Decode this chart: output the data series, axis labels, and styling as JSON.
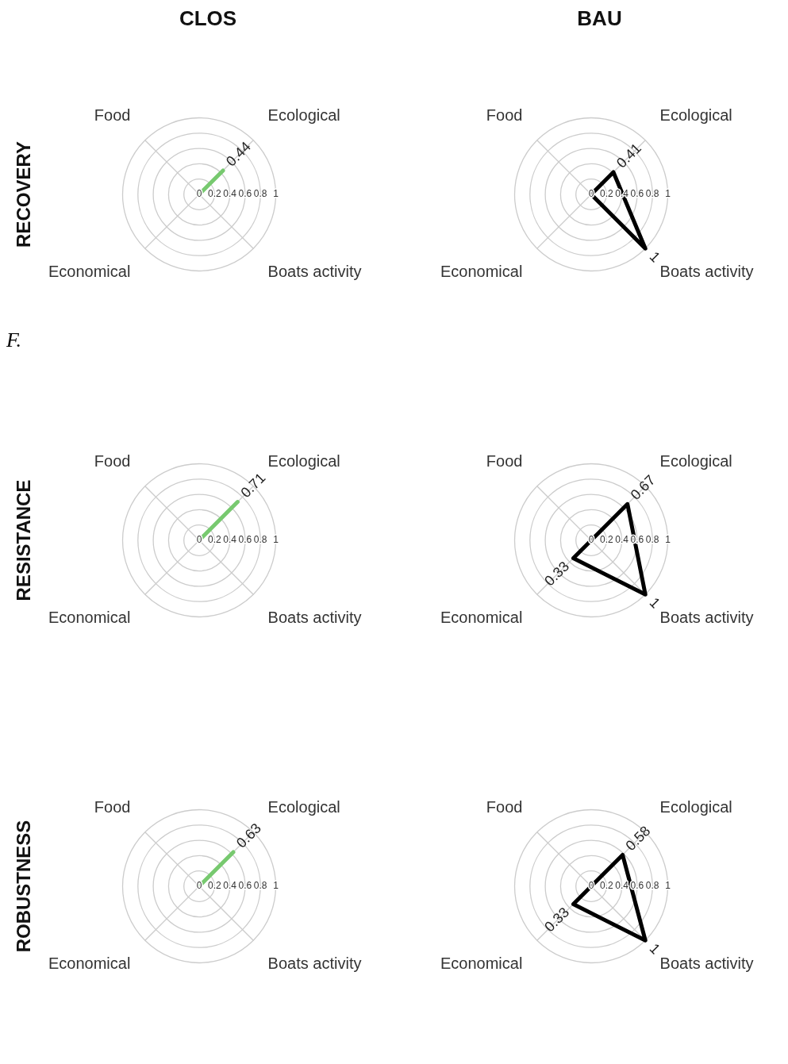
{
  "chart_data": [
    {
      "type": "radar",
      "title": "CLOS",
      "ylabel": "RECOVERY",
      "annotations": [
        "F."
      ],
      "categories": [
        "Ecological",
        "Boats activity",
        "Economical",
        "Food"
      ],
      "series": [
        {
          "color": "#77c96f",
          "values": [
            0.44,
            0,
            0,
            0
          ],
          "value_labels": [
            "0.44",
            null,
            null,
            null
          ]
        }
      ],
      "ylim": [
        0,
        1
      ],
      "yticks": [
        0,
        0.2,
        0.4,
        0.6,
        0.8,
        1
      ],
      "grid": true,
      "marker": "none",
      "line_style": "solid"
    },
    {
      "type": "radar",
      "title": "BAU",
      "categories": [
        "Ecological",
        "Boats activity",
        "Economical",
        "Food"
      ],
      "series": [
        {
          "color": "#000000",
          "values": [
            0.41,
            1,
            0,
            0
          ],
          "value_labels": [
            "0.41",
            "1",
            null,
            null
          ]
        }
      ],
      "ylim": [
        0,
        1
      ],
      "yticks": [
        0,
        0.2,
        0.4,
        0.6,
        0.8,
        1
      ],
      "grid": true,
      "marker": "none",
      "line_style": "solid"
    },
    {
      "type": "radar",
      "ylabel": "RESISTANCE",
      "categories": [
        "Ecological",
        "Boats activity",
        "Economical",
        "Food"
      ],
      "series": [
        {
          "color": "#77c96f",
          "values": [
            0.71,
            0,
            0,
            0
          ],
          "value_labels": [
            "0.71",
            null,
            null,
            null
          ]
        }
      ],
      "ylim": [
        0,
        1
      ],
      "yticks": [
        0,
        0.2,
        0.4,
        0.6,
        0.8,
        1
      ],
      "grid": true,
      "marker": "none",
      "line_style": "solid"
    },
    {
      "type": "radar",
      "categories": [
        "Ecological",
        "Boats activity",
        "Economical",
        "Food"
      ],
      "series": [
        {
          "color": "#000000",
          "values": [
            0.67,
            1,
            0.33,
            0
          ],
          "value_labels": [
            "0.67",
            "1",
            "0.33",
            null
          ]
        }
      ],
      "ylim": [
        0,
        1
      ],
      "yticks": [
        0,
        0.2,
        0.4,
        0.6,
        0.8,
        1
      ],
      "grid": true,
      "marker": "none",
      "line_style": "solid"
    },
    {
      "type": "radar",
      "ylabel": "ROBUSTNESS",
      "categories": [
        "Ecological",
        "Boats activity",
        "Economical",
        "Food"
      ],
      "series": [
        {
          "color": "#77c96f",
          "values": [
            0.63,
            0,
            0,
            0
          ],
          "value_labels": [
            "0.63",
            null,
            null,
            null
          ]
        }
      ],
      "ylim": [
        0,
        1
      ],
      "yticks": [
        0,
        0.2,
        0.4,
        0.6,
        0.8,
        1
      ],
      "grid": true,
      "marker": "none",
      "line_style": "solid"
    },
    {
      "type": "radar",
      "categories": [
        "Ecological",
        "Boats activity",
        "Economical",
        "Food"
      ],
      "series": [
        {
          "color": "#000000",
          "values": [
            0.58,
            1,
            0.33,
            0
          ],
          "value_labels": [
            "0.58",
            "1",
            "0.33",
            null
          ]
        }
      ],
      "ylim": [
        0,
        1
      ],
      "yticks": [
        0,
        0.2,
        0.4,
        0.6,
        0.8,
        1
      ],
      "grid": true,
      "marker": "none",
      "line_style": "solid"
    }
  ]
}
